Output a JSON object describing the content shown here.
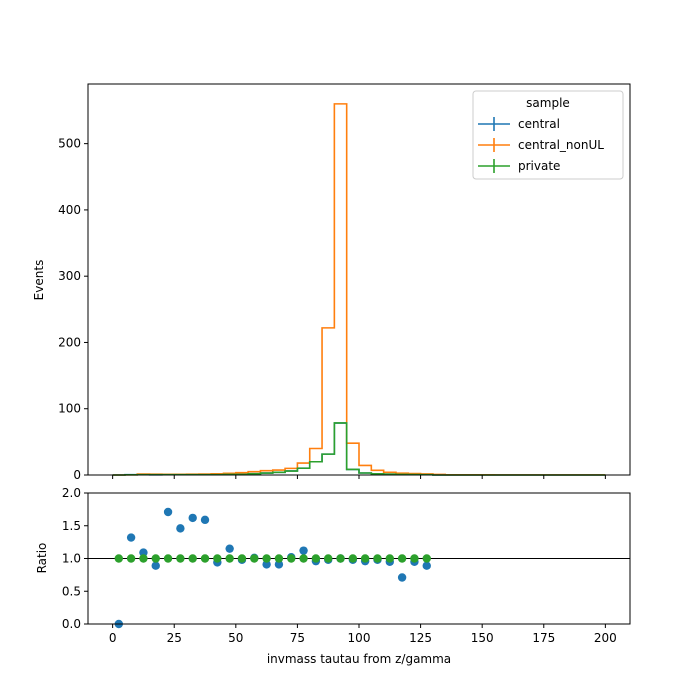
{
  "chart_data": [
    {
      "type": "line",
      "drawstyle": "steps",
      "ylabel": "Events",
      "xlim": [
        -10,
        210
      ],
      "ylim": [
        0,
        590
      ],
      "yticks": [
        0,
        100,
        200,
        300,
        400,
        500
      ],
      "bin_edges": [
        0,
        5,
        10,
        15,
        20,
        25,
        30,
        35,
        40,
        45,
        50,
        55,
        60,
        65,
        70,
        75,
        80,
        85,
        90,
        95,
        100,
        105,
        110,
        115,
        120,
        125,
        130,
        135,
        140,
        145,
        150,
        155,
        160,
        165,
        170,
        175,
        180,
        185,
        190,
        195,
        200
      ],
      "legend": {
        "title": "sample",
        "placement": "top-right",
        "entries": [
          "central",
          "central_nonUL",
          "private"
        ]
      },
      "series": [
        {
          "name": "central",
          "color": "#1f77b4",
          "values": [
            0,
            0.4,
            0.5,
            0.3,
            0.4,
            0.4,
            0.5,
            0.6,
            0.5,
            1.1,
            0.9,
            2.0,
            2.9,
            4.0,
            6.1,
            10.3,
            20.0,
            31.5,
            78.3,
            8.4,
            3.0,
            1.9,
            1.2,
            0.8,
            0.6,
            0.4,
            0,
            0,
            0,
            0,
            0,
            0,
            0,
            0,
            0,
            0,
            0,
            0,
            0,
            0
          ]
        },
        {
          "name": "central_nonUL",
          "color": "#ff7f0e",
          "values": [
            0,
            0.3,
            1.5,
            1.2,
            1.0,
            1.1,
            1.3,
            1.5,
            1.8,
            2.5,
            3.5,
            5.0,
            6.5,
            7.5,
            10.0,
            18.0,
            40.0,
            222.0,
            560.0,
            48.0,
            14.5,
            7.0,
            4.0,
            2.7,
            2.2,
            1.6,
            0.8,
            0.3,
            0.3,
            0.3,
            0.3,
            0.2,
            0.2,
            0.2,
            0.2,
            0.2,
            0.2,
            0.2,
            0.2,
            0.2
          ]
        },
        {
          "name": "private",
          "color": "#2ca02c",
          "values": [
            0,
            0.3,
            0.4,
            0.4,
            0.4,
            0.4,
            0.5,
            0.5,
            0.5,
            0.9,
            0.9,
            1.9,
            2.9,
            4.0,
            6.0,
            10.2,
            20.0,
            31.5,
            78.5,
            8.4,
            3.0,
            1.9,
            1.2,
            0.9,
            0.6,
            0.4,
            0,
            0,
            0,
            0,
            0,
            0,
            0,
            0,
            0,
            0,
            0,
            0,
            0,
            0
          ]
        }
      ]
    },
    {
      "type": "scatter",
      "xlabel": "invmass tautau from z/gamma",
      "ylabel": "Ratio",
      "xlim": [
        -10,
        210
      ],
      "ylim": [
        0,
        2
      ],
      "xticks": [
        0,
        25,
        50,
        75,
        100,
        125,
        150,
        175,
        200
      ],
      "yticks": [
        0.0,
        0.5,
        1.0,
        1.5,
        2.0
      ],
      "yticklabels": [
        "0.0",
        "0.5",
        "1.0",
        "1.5",
        "2.0"
      ],
      "reference_line": 1.0,
      "series": [
        {
          "name": "central",
          "color": "#1f77b4",
          "x": [
            2.5,
            7.5,
            12.5,
            17.5,
            22.5,
            27.5,
            32.5,
            37.5,
            42.5,
            47.5,
            52.5,
            57.5,
            62.5,
            67.5,
            72.5,
            77.5,
            82.5,
            87.5,
            92.5,
            97.5,
            102.5,
            107.5,
            112.5,
            117.5,
            122.5,
            127.5
          ],
          "y": [
            0.0,
            1.32,
            1.09,
            0.89,
            1.71,
            1.46,
            1.62,
            1.59,
            0.94,
            1.15,
            0.98,
            1.01,
            0.91,
            0.91,
            1.02,
            1.12,
            0.96,
            0.98,
            1.0,
            0.98,
            0.96,
            0.98,
            0.95,
            0.71,
            0.95,
            0.89
          ]
        },
        {
          "name": "private",
          "color": "#2ca02c",
          "x": [
            2.5,
            7.5,
            12.5,
            17.5,
            22.5,
            27.5,
            32.5,
            37.5,
            42.5,
            47.5,
            52.5,
            57.5,
            62.5,
            67.5,
            72.5,
            77.5,
            82.5,
            87.5,
            92.5,
            97.5,
            102.5,
            107.5,
            112.5,
            117.5,
            122.5,
            127.5
          ],
          "y": [
            1.0,
            1.0,
            1.0,
            1.0,
            1.0,
            1.0,
            1.0,
            1.0,
            1.0,
            1.0,
            1.0,
            1.0,
            1.0,
            1.0,
            1.0,
            1.0,
            1.0,
            1.0,
            1.0,
            1.0,
            1.0,
            1.0,
            1.0,
            1.0,
            1.0,
            1.0
          ]
        }
      ]
    }
  ]
}
